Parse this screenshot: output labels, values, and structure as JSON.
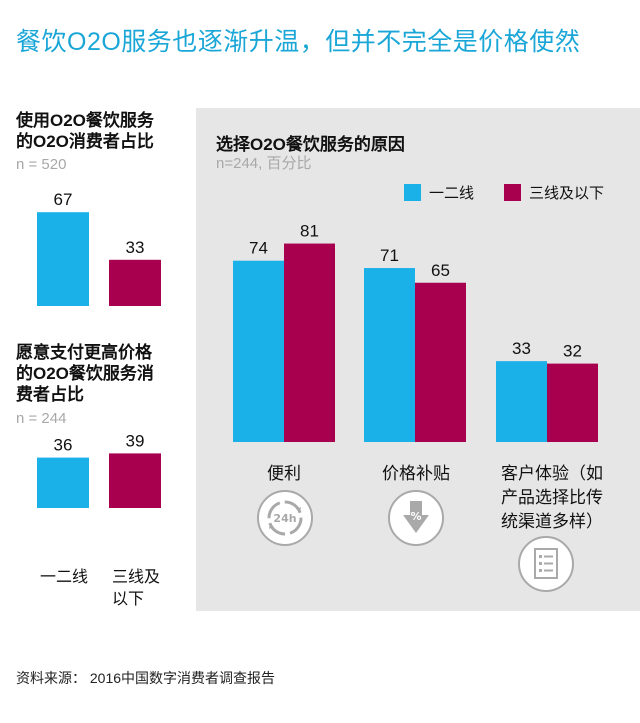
{
  "title": "餐饮O2O服务也逐渐升温，但并不完全是价格使然",
  "colors": {
    "tier12": "#1ab0e8",
    "tier3": "#a8004f",
    "title": "#1aa6d7"
  },
  "chart_data": [
    {
      "type": "bar",
      "title": "使用O2O餐饮服务的O2O消费者占比",
      "subtitle": "n = 520",
      "categories": [
        "一二线",
        "三线及以下"
      ],
      "values": [
        67,
        33
      ]
    },
    {
      "type": "bar",
      "title": "愿意支付更高价格的O2O餐饮服务消费者占比",
      "subtitle": "n = 244",
      "categories": [
        "一二线",
        "三线及以下"
      ],
      "values": [
        36,
        39
      ]
    },
    {
      "type": "bar",
      "title": "选择O2O餐饮服务的原因",
      "subtitle": "n=244, 百分比",
      "categories": [
        "便利",
        "价格补贴",
        "客户体验（如产品选择比传统渠道多样）"
      ],
      "series": [
        {
          "name": "一二线",
          "values": [
            74,
            71,
            33
          ]
        },
        {
          "name": "三线及以下",
          "values": [
            81,
            65,
            32
          ]
        }
      ],
      "legend": "top-right"
    }
  ],
  "left1": {
    "title_l1": "使用O2O餐饮服务",
    "title_l2": "的O2O消费者占比",
    "n": "n = 520"
  },
  "left2": {
    "title_l1": "愿意支付更高价格",
    "title_l2": "的O2O餐饮服务消",
    "title_l3": "费者占比",
    "n": "n = 244"
  },
  "left_categories": {
    "c1": "一二线",
    "c2_l1": "三线及",
    "c2_l2": "以下"
  },
  "right": {
    "title": "选择O2O餐饮服务的原因",
    "n": "n=244, 百分比",
    "legend": [
      "一二线",
      "三线及以下"
    ],
    "categories": {
      "c1": "便利",
      "c2": "价格补贴",
      "c3_l1": "客户体验（如",
      "c3_l2": "产品选择比传",
      "c3_l3": "统渠道多样）"
    }
  },
  "icons": {
    "convenience": "24h-clock-icon",
    "subsidy": "percent-discount-icon",
    "experience": "checklist-icon",
    "icon1_text": "24h",
    "icon2_text": "%"
  },
  "source": "资料来源：  2016中国数字消费者调查报告"
}
